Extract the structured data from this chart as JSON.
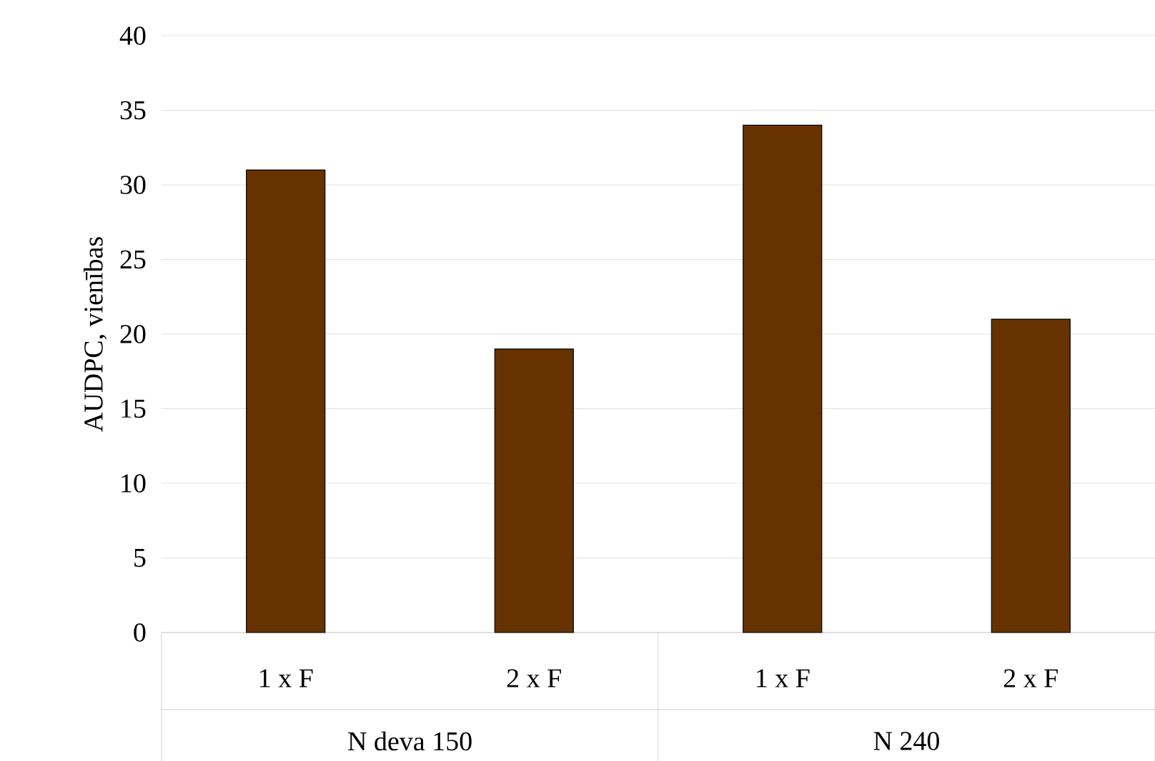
{
  "chart_data": {
    "type": "bar",
    "ylabel": "AUDPC, vienības",
    "categories": [
      "1 x F",
      "2 x F",
      "1 x F",
      "2 x F"
    ],
    "values": [
      31,
      19,
      34,
      21
    ],
    "color": "#663300",
    "ylim": [
      0,
      40
    ],
    "yticks": [
      0,
      5,
      10,
      15,
      20,
      25,
      30,
      35,
      40
    ],
    "grid": "y",
    "annotations": [
      "N deva 150",
      "N 240"
    ]
  }
}
